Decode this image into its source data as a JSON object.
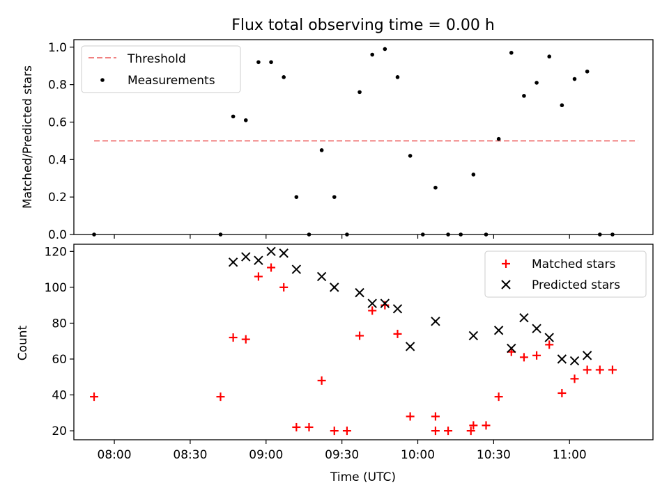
{
  "figure": {
    "title": "Flux total observing time = 0.00 h",
    "xlabel": "Time (UTC)"
  },
  "colors": {
    "threshold": "#f08080",
    "measurement": "#000000",
    "matched": "#ff0000",
    "predicted": "#000000"
  },
  "chart_data": [
    {
      "type": "scatter",
      "panel": "top",
      "ylabel": "Matched/Predicted stars",
      "ylim": [
        0,
        1.04
      ],
      "yticks": [
        0,
        0.2,
        0.4,
        0.6,
        0.8,
        1.0
      ],
      "ytick_labels": [
        "0.0",
        "0.2",
        "0.4",
        "0.6",
        "0.8",
        "1.0"
      ],
      "xlim": [
        "07:44",
        "11:33"
      ],
      "legend_position": "top-left",
      "series": [
        {
          "name": "Threshold",
          "style": "dashed-line",
          "x": [
            "07:52",
            "11:27"
          ],
          "y": [
            0.5,
            0.5
          ]
        },
        {
          "name": "Measurements",
          "style": "dot",
          "x": [
            "07:52",
            "08:42",
            "08:47",
            "08:52",
            "08:57",
            "09:02",
            "09:07",
            "09:12",
            "09:17",
            "09:22",
            "09:27",
            "09:32",
            "09:37",
            "09:42",
            "09:47",
            "09:52",
            "09:57",
            "10:02",
            "10:07",
            "10:12",
            "10:17",
            "10:22",
            "10:27",
            "10:32",
            "10:37",
            "10:42",
            "10:47",
            "10:52",
            "10:57",
            "11:02",
            "11:07",
            "11:12",
            "11:17"
          ],
          "y": [
            0,
            0,
            0.63,
            0.61,
            0.92,
            0.92,
            0.84,
            0.2,
            0,
            0.45,
            0.2,
            0,
            0.76,
            0.96,
            0.99,
            0.84,
            0.42,
            0,
            0.25,
            0,
            0,
            0.32,
            0,
            0.51,
            0.97,
            0.74,
            0.81,
            0.95,
            0.69,
            0.83,
            0.87,
            0,
            0
          ]
        }
      ]
    },
    {
      "type": "scatter",
      "panel": "bottom",
      "ylabel": "Count",
      "ylim": [
        15,
        124
      ],
      "yticks": [
        20,
        40,
        60,
        80,
        100,
        120
      ],
      "ytick_labels": [
        "20",
        "40",
        "60",
        "80",
        "100",
        "120"
      ],
      "xlim": [
        "07:44",
        "11:33"
      ],
      "xticks": [
        "08:00",
        "08:30",
        "09:00",
        "09:30",
        "10:00",
        "10:30",
        "11:00"
      ],
      "xtick_labels": [
        "08:00",
        "08:30",
        "09:00",
        "09:30",
        "10:00",
        "10:30",
        "11:00"
      ],
      "legend_position": "top-right",
      "series": [
        {
          "name": "Matched stars",
          "style": "plus",
          "x": [
            "07:52",
            "08:42",
            "08:47",
            "08:52",
            "08:57",
            "09:02",
            "09:07",
            "09:12",
            "09:17",
            "09:22",
            "09:27",
            "09:32",
            "09:37",
            "09:42",
            "09:47",
            "09:52",
            "09:57",
            "10:07",
            "10:07",
            "10:12",
            "10:21",
            "10:22",
            "10:27",
            "10:32",
            "10:37",
            "10:42",
            "10:47",
            "10:52",
            "10:57",
            "11:02",
            "11:07",
            "11:12",
            "11:17"
          ],
          "y": [
            39,
            39,
            72,
            71,
            106,
            111,
            100,
            22,
            22,
            48,
            20,
            20,
            73,
            87,
            90,
            74,
            28,
            28,
            20,
            20,
            20,
            23,
            23,
            39,
            64,
            61,
            62,
            68,
            41,
            49,
            54,
            54,
            54
          ]
        },
        {
          "name": "Predicted stars",
          "style": "x",
          "x": [
            "08:47",
            "08:52",
            "08:57",
            "09:02",
            "09:07",
            "09:12",
            "09:22",
            "09:27",
            "09:37",
            "09:42",
            "09:47",
            "09:52",
            "09:57",
            "10:07",
            "10:22",
            "10:32",
            "10:37",
            "10:42",
            "10:47",
            "10:52",
            "10:57",
            "11:02",
            "11:07"
          ],
          "y": [
            114,
            117,
            115,
            120,
            119,
            110,
            106,
            100,
            97,
            91,
            91,
            88,
            67,
            81,
            73,
            76,
            66,
            83,
            77,
            72,
            60,
            59,
            62
          ]
        }
      ]
    }
  ]
}
